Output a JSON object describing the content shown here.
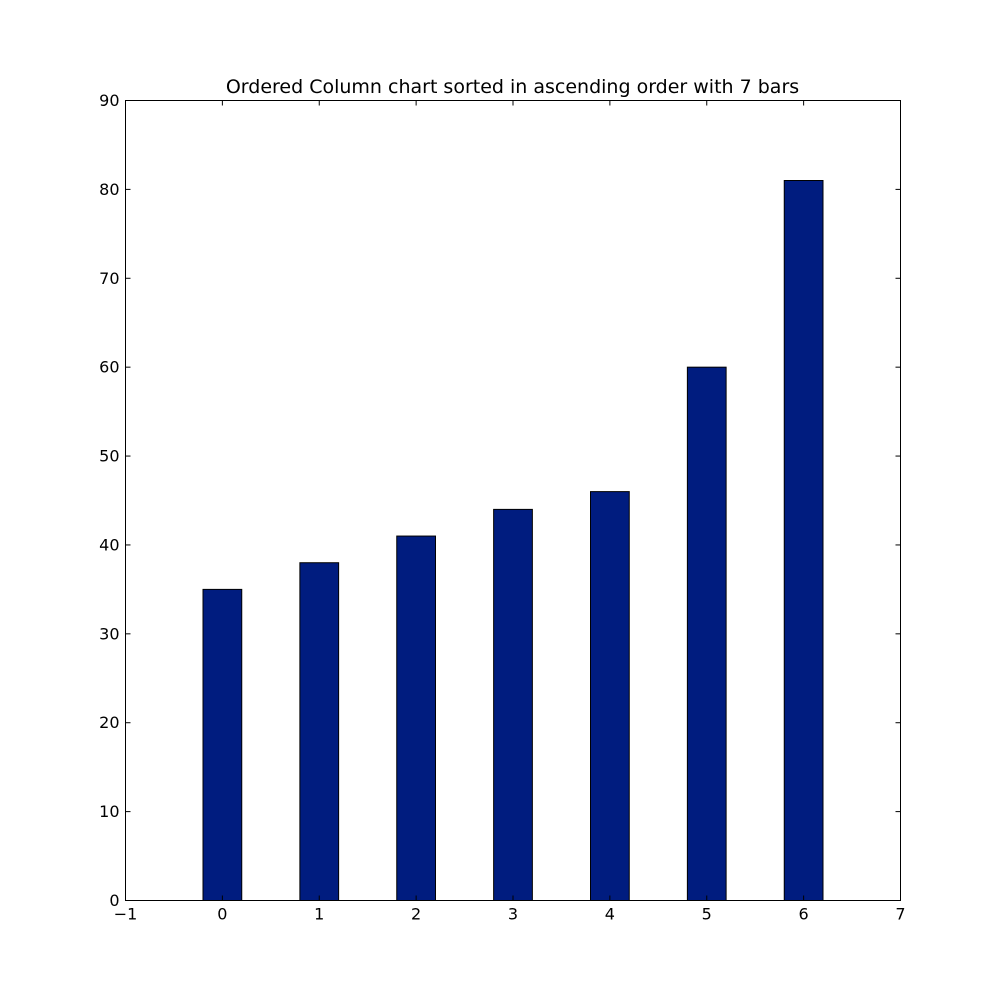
{
  "chart_data": {
    "type": "bar",
    "title": "Ordered Column chart sorted in ascending order with 7 bars",
    "xlabel": "",
    "ylabel": "",
    "categories": [
      0,
      1,
      2,
      3,
      4,
      5,
      6
    ],
    "values": [
      35,
      38,
      41,
      44,
      46,
      60,
      81
    ],
    "xlim": [
      -1,
      7
    ],
    "ylim": [
      0,
      90
    ],
    "xticks": [
      -1,
      0,
      1,
      2,
      3,
      4,
      5,
      6,
      7
    ],
    "xtick_labels": [
      "−1",
      "0",
      "1",
      "2",
      "3",
      "4",
      "5",
      "6",
      "7"
    ],
    "yticks": [
      0,
      10,
      20,
      30,
      40,
      50,
      60,
      70,
      80,
      90
    ],
    "ytick_labels": [
      "0",
      "10",
      "20",
      "30",
      "40",
      "50",
      "60",
      "70",
      "80",
      "90"
    ],
    "bar_color": "#001c7f",
    "grid": false,
    "legend": "none"
  }
}
